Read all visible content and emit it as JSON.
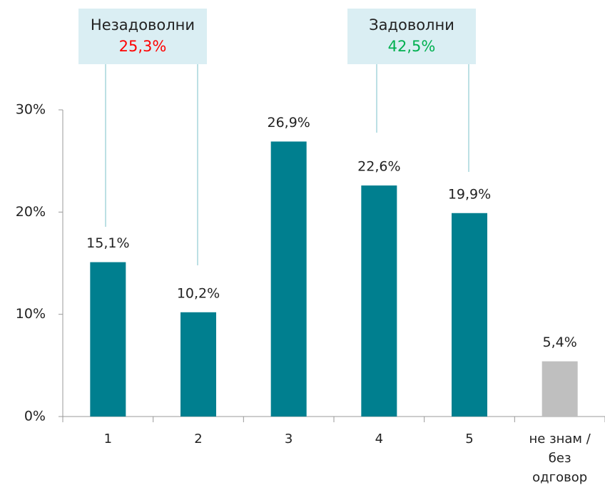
{
  "chart_data": {
    "type": "bar",
    "categories": [
      "1",
      "2",
      "3",
      "4",
      "5",
      "не знам / без одговор"
    ],
    "values": [
      15.1,
      10.2,
      26.9,
      22.6,
      19.9,
      5.4
    ],
    "value_labels": [
      "15,1%",
      "10,2%",
      "26,9%",
      "22,6%",
      "19,9%",
      "5,4%"
    ],
    "colors": [
      "#007f8f",
      "#007f8f",
      "#007f8f",
      "#007f8f",
      "#007f8f",
      "#bfbfbf"
    ],
    "ylim": [
      0,
      30
    ],
    "yticks": [
      {
        "value": 0,
        "label": "0%"
      },
      {
        "value": 10,
        "label": "10%"
      },
      {
        "value": 20,
        "label": "20%"
      },
      {
        "value": 30,
        "label": "30%"
      }
    ],
    "grid": false,
    "annotations": [
      {
        "title": "Незадоволни",
        "text": "25,3%",
        "color": "#ff0000"
      },
      {
        "title": "Задоволни",
        "text": "42,5%",
        "color": "#00b050"
      }
    ]
  }
}
